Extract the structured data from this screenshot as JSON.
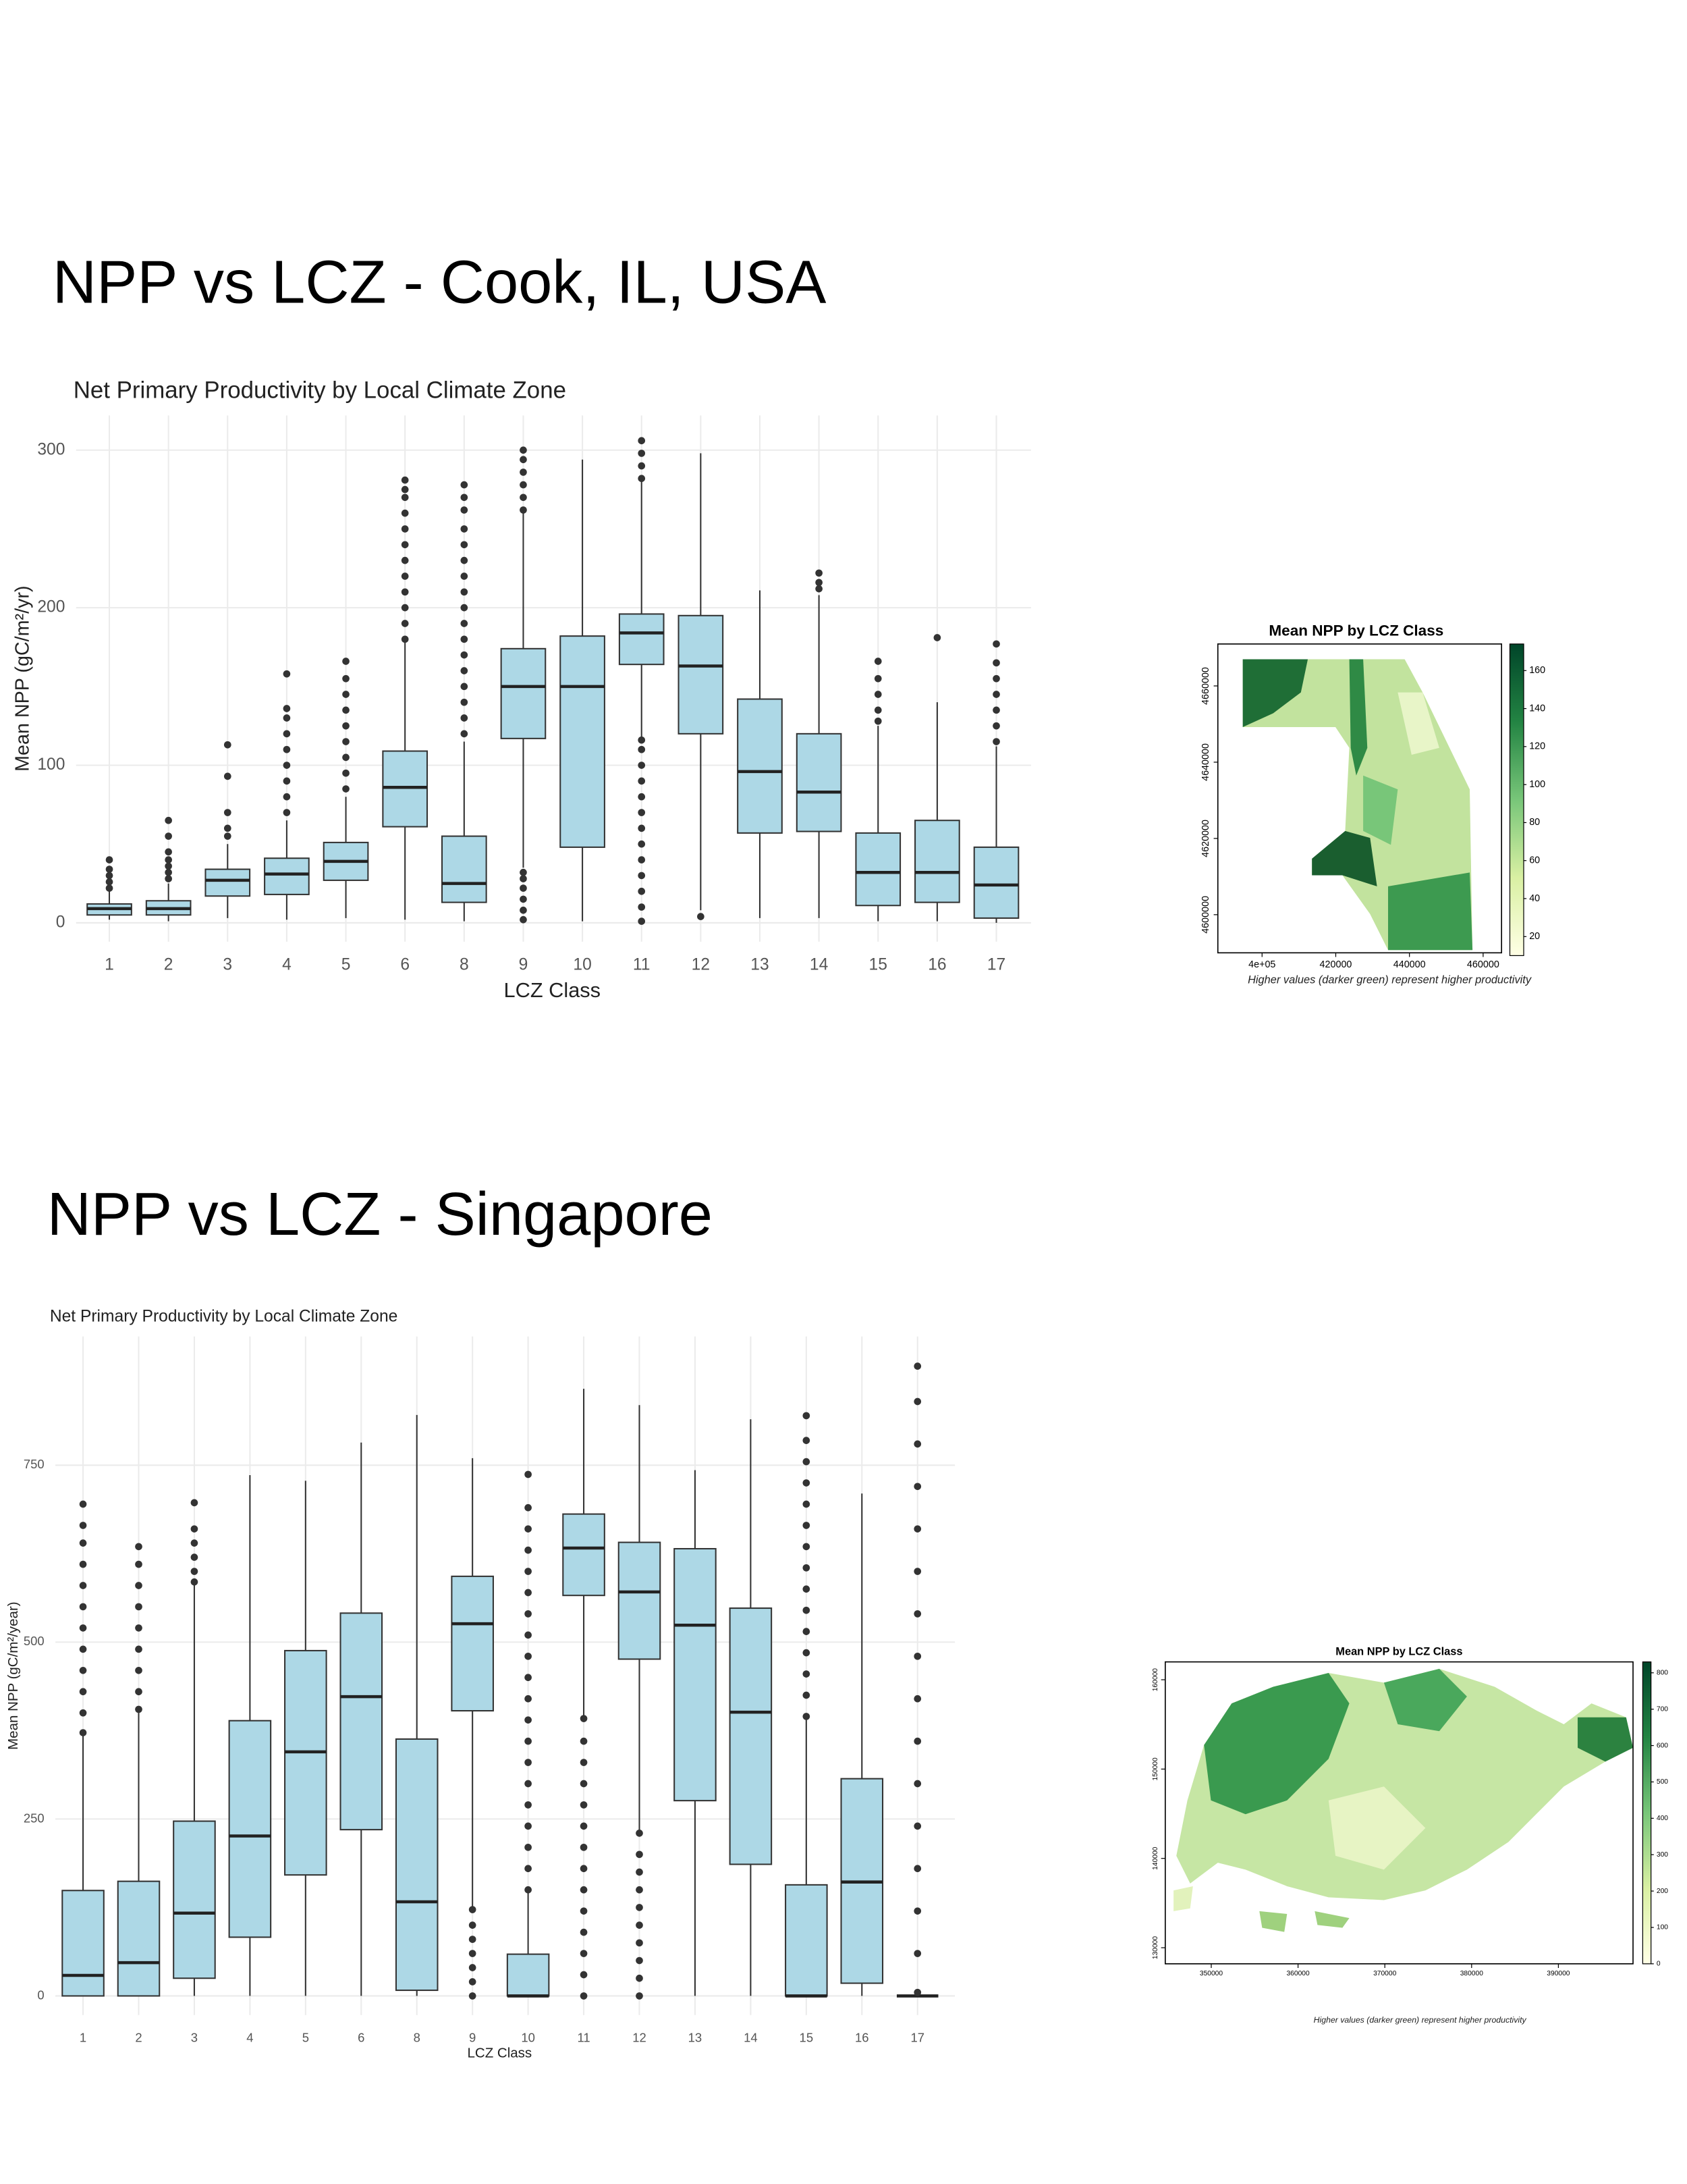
{
  "headings": [
    "NPP vs LCZ - Cook, IL, USA",
    "NPP vs LCZ - Singapore"
  ],
  "chart_data": [
    {
      "type": "box",
      "title": "Net Primary Productivity by Local Climate Zone",
      "x_label": "LCZ Class",
      "y_label": "Mean NPP (gC/m²/yr)",
      "color": "#add8e6",
      "grid": true,
      "categories": [
        "1",
        "2",
        "3",
        "4",
        "5",
        "6",
        "8",
        "9",
        "10",
        "11",
        "12",
        "13",
        "14",
        "15",
        "16",
        "17"
      ],
      "whisker_low": [
        2,
        1,
        3,
        2,
        3,
        2,
        1,
        35,
        1,
        118,
        8,
        3,
        3,
        1,
        1,
        0
      ],
      "q1": [
        5,
        5,
        17,
        18,
        27,
        61,
        13,
        117,
        48,
        164,
        120,
        57,
        58,
        11,
        13,
        3
      ],
      "median": [
        9,
        9,
        27,
        31,
        39,
        86,
        25,
        150,
        150,
        184,
        163,
        96,
        83,
        32,
        32,
        24
      ],
      "q3": [
        12,
        14,
        34,
        41,
        51,
        109,
        55,
        174,
        182,
        196,
        195,
        142,
        120,
        57,
        65,
        48
      ],
      "whisker_high": [
        20,
        25,
        50,
        65,
        80,
        178,
        115,
        260,
        294,
        280,
        298,
        211,
        208,
        125,
        140,
        112
      ],
      "outliers": [
        [
          22,
          26,
          30,
          34,
          40
        ],
        [
          28,
          32,
          36,
          40,
          45,
          55,
          65
        ],
        [
          55,
          60,
          70,
          93,
          113
        ],
        [
          70,
          80,
          90,
          100,
          110,
          120,
          130,
          136,
          158
        ],
        [
          85,
          95,
          105,
          115,
          125,
          135,
          145,
          155,
          166
        ],
        [
          180,
          190,
          200,
          210,
          220,
          230,
          240,
          250,
          260,
          270,
          275,
          281
        ],
        [
          120,
          130,
          140,
          150,
          160,
          170,
          180,
          190,
          200,
          210,
          220,
          230,
          240,
          250,
          262,
          270,
          278
        ],
        [
          2,
          8,
          15,
          22,
          28,
          32,
          262,
          270,
          278,
          286,
          294,
          300
        ],
        [],
        [
          1,
          10,
          20,
          30,
          40,
          50,
          60,
          70,
          80,
          90,
          100,
          110,
          116,
          282,
          290,
          298,
          306
        ],
        [
          4
        ],
        [],
        [
          212,
          216,
          222
        ],
        [
          128,
          135,
          145,
          155,
          166
        ],
        [
          181
        ],
        [
          115,
          125,
          135,
          145,
          155,
          165,
          177
        ]
      ],
      "ylim": [
        -12,
        322
      ],
      "yticks": [
        0,
        100,
        200,
        300
      ]
    },
    {
      "type": "box",
      "title": "Net Primary Productivity by Local Climate Zone",
      "x_label": "LCZ Class",
      "y_label": "Mean NPP (gC/m²/year)",
      "color": "#add8e6",
      "grid": true,
      "categories": [
        "1",
        "2",
        "3",
        "4",
        "5",
        "6",
        "8",
        "9",
        "10",
        "11",
        "12",
        "13",
        "14",
        "15",
        "16",
        "17"
      ],
      "whisker_low": [
        0,
        0,
        0,
        0,
        0,
        0,
        0,
        125,
        0,
        395,
        232,
        0,
        0,
        0,
        0,
        0
      ],
      "q1": [
        0,
        0,
        25,
        83,
        171,
        235,
        8,
        403,
        0,
        566,
        476,
        276,
        186,
        0,
        18,
        0
      ],
      "median": [
        29,
        47,
        117,
        226,
        345,
        423,
        133,
        526,
        0,
        633,
        571,
        524,
        401,
        0,
        161,
        0
      ],
      "q3": [
        149,
        162,
        247,
        389,
        488,
        541,
        363,
        593,
        59,
        681,
        641,
        632,
        548,
        157,
        307,
        0
      ],
      "whisker_high": [
        370,
        400,
        580,
        736,
        728,
        782,
        821,
        760,
        145,
        858,
        835,
        743,
        815,
        390,
        710,
        0
      ],
      "outliers": [
        [
          372,
          400,
          430,
          460,
          490,
          520,
          550,
          580,
          610,
          640,
          665,
          695
        ],
        [
          405,
          430,
          460,
          490,
          520,
          550,
          580,
          610,
          635
        ],
        [
          585,
          600,
          620,
          640,
          660,
          697
        ],
        [],
        [],
        [],
        [],
        [
          0,
          20,
          40,
          60,
          80,
          100,
          122
        ],
        [
          150,
          180,
          210,
          240,
          270,
          300,
          330,
          360,
          390,
          420,
          450,
          480,
          510,
          540,
          570,
          600,
          630,
          660,
          690,
          737
        ],
        [
          0,
          30,
          60,
          90,
          120,
          150,
          180,
          210,
          240,
          270,
          300,
          330,
          360,
          392
        ],
        [
          0,
          25,
          50,
          75,
          100,
          125,
          150,
          175,
          200,
          230
        ],
        [],
        [],
        [
          395,
          425,
          455,
          485,
          515,
          545,
          575,
          605,
          635,
          665,
          695,
          725,
          755,
          785,
          820
        ],
        [],
        [
          5,
          60,
          120,
          180,
          240,
          300,
          360,
          420,
          480,
          540,
          600,
          660,
          720,
          780,
          840,
          890
        ]
      ],
      "ylim": [
        -27,
        932
      ],
      "yticks": [
        0,
        250,
        500,
        750
      ]
    },
    {
      "type": "map",
      "title": "Mean NPP by LCZ Class",
      "caption": "Higher values (darker green) represent higher productivity",
      "xlim": [
        388000,
        465000
      ],
      "xticks": [
        {
          "value": 400000,
          "label": "4e+05"
        },
        420000,
        440000,
        460000
      ],
      "ylim": [
        4590000,
        4671000
      ],
      "yticks": [
        4600000,
        4620000,
        4640000,
        4660000
      ],
      "clim": [
        10,
        174
      ],
      "cticks": [
        20,
        40,
        60,
        80,
        100,
        120,
        140,
        160
      ]
    },
    {
      "type": "map",
      "title": "Mean NPP by LCZ Class",
      "caption": "Higher values (darker green) represent higher productivity",
      "xlim": [
        344700,
        398600
      ],
      "xticks": [
        350000,
        360000,
        370000,
        380000,
        390000
      ],
      "ylim": [
        128200,
        162000
      ],
      "yticks": [
        130000,
        140000,
        150000,
        160000
      ],
      "clim": [
        0,
        830
      ],
      "cticks": [
        0,
        100,
        200,
        300,
        400,
        500,
        600,
        700,
        800
      ]
    }
  ]
}
